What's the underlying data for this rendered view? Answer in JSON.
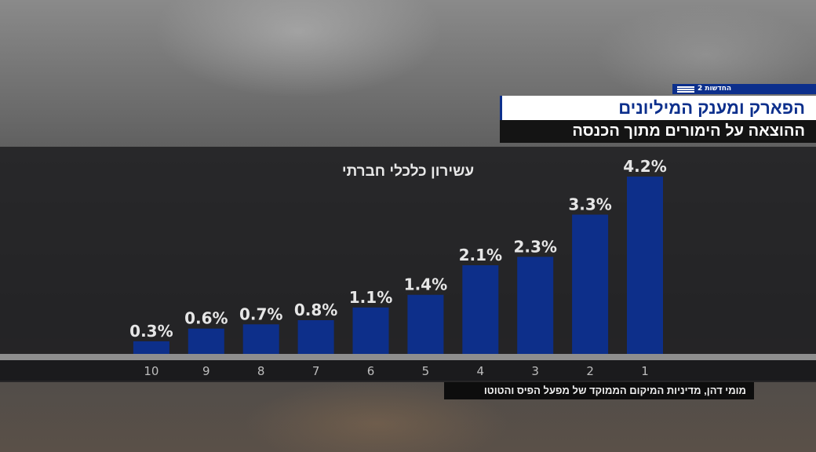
{
  "broadcast": {
    "brand_label": "החדשות 2",
    "headline": "הפארק ומענק המיליונים",
    "subheadline": "ההוצאה על הימורים מתוך הכנסה",
    "credit": "מומי דהן, מדיניות המיקום הממוקד של מפעל הפיס והטוטו"
  },
  "colors": {
    "bar": "#0d2f8a",
    "brand_blue": "#0c2f8c",
    "label": "#e6e6e6",
    "tick": "#bdbdbd"
  },
  "chart_data": {
    "type": "bar",
    "title": "עשירון כלכלי חברתי",
    "xlabel": "",
    "ylabel": "",
    "categories": [
      "1",
      "2",
      "3",
      "4",
      "5",
      "6",
      "7",
      "8",
      "9",
      "10"
    ],
    "values": [
      4.2,
      3.3,
      2.3,
      2.1,
      1.4,
      1.1,
      0.8,
      0.7,
      0.6,
      0.3
    ],
    "value_labels": [
      "4.2%",
      "3.3%",
      "2.3%",
      "2.1%",
      "1.4%",
      "1.1%",
      "0.8%",
      "0.7%",
      "0.6%",
      "0.3%"
    ],
    "unit": "%",
    "ylim": [
      0,
      4.5
    ],
    "x_direction": "right-to-left",
    "grid": false,
    "legend": "none"
  }
}
